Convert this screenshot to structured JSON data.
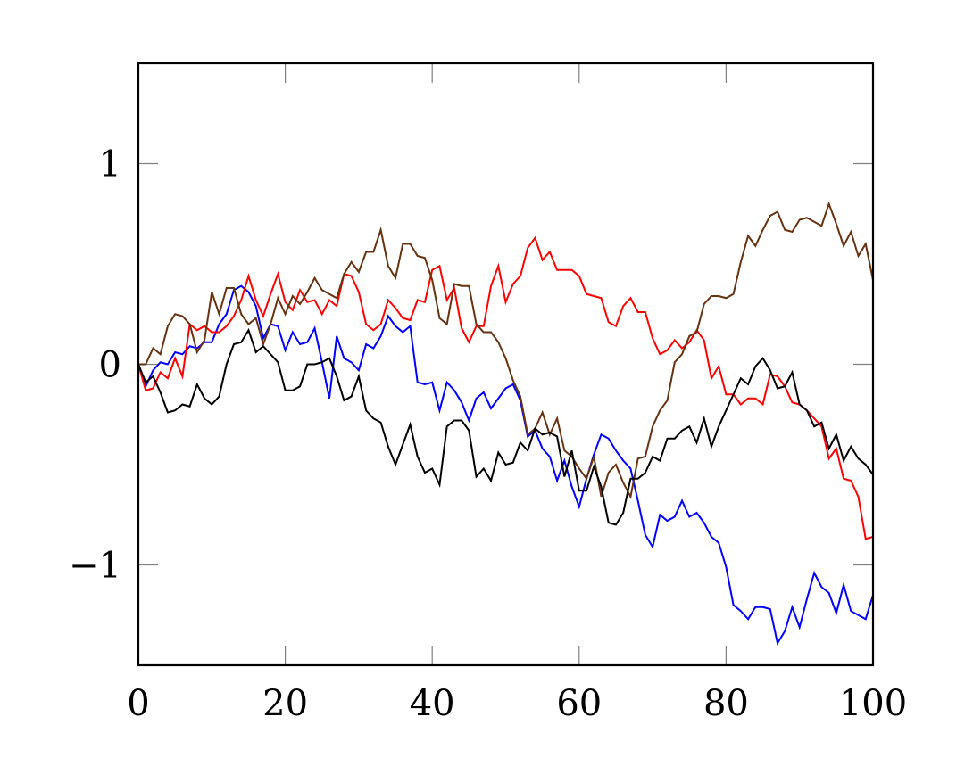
{
  "chart_data": {
    "type": "line",
    "title": "",
    "xlabel": "",
    "ylabel": "",
    "xlim": [
      0,
      100
    ],
    "ylim": [
      -1.5,
      1.5
    ],
    "xticks": [
      0,
      20,
      40,
      60,
      80,
      100
    ],
    "xtick_labels": [
      "0",
      "20",
      "40",
      "60",
      "80",
      "100"
    ],
    "yticks": [
      -1,
      0,
      1
    ],
    "ytick_labels": [
      "−1",
      "0",
      "1"
    ],
    "grid": false,
    "legend": null,
    "x": "0..100 step 1",
    "series": [
      {
        "name": "blue",
        "color": "#0000ff",
        "values": [
          0,
          -0.11,
          -0.03,
          0.01,
          0.0,
          0.06,
          0.05,
          0.09,
          0.08,
          0.11,
          0.11,
          0.2,
          0.25,
          0.37,
          0.39,
          0.36,
          0.29,
          0.13,
          0.2,
          0.19,
          0.07,
          0.16,
          0.1,
          0.11,
          0.18,
          0.01,
          -0.17,
          0.14,
          0.03,
          0.01,
          -0.03,
          0.1,
          0.08,
          0.14,
          0.24,
          0.19,
          0.16,
          0.19,
          -0.09,
          -0.1,
          -0.09,
          -0.23,
          -0.09,
          -0.13,
          -0.19,
          -0.28,
          -0.17,
          -0.14,
          -0.22,
          -0.17,
          -0.12,
          -0.1,
          -0.18,
          -0.36,
          -0.33,
          -0.42,
          -0.46,
          -0.58,
          -0.48,
          -0.61,
          -0.71,
          -0.57,
          -0.45,
          -0.35,
          -0.37,
          -0.43,
          -0.48,
          -0.52,
          -0.68,
          -0.85,
          -0.91,
          -0.75,
          -0.78,
          -0.76,
          -0.68,
          -0.76,
          -0.74,
          -0.79,
          -0.86,
          -0.89,
          -1.01,
          -1.2,
          -1.23,
          -1.27,
          -1.21,
          -1.21,
          -1.22,
          -1.39,
          -1.33,
          -1.21,
          -1.31,
          -1.17,
          -1.04,
          -1.11,
          -1.14,
          -1.24,
          -1.1,
          -1.23,
          -1.25,
          -1.27,
          -1.15
        ]
      },
      {
        "name": "red",
        "color": "#ff0000",
        "values": [
          0,
          -0.13,
          -0.12,
          -0.04,
          -0.07,
          0.03,
          -0.06,
          0.2,
          0.17,
          0.19,
          0.16,
          0.16,
          0.19,
          0.24,
          0.32,
          0.44,
          0.32,
          0.24,
          0.35,
          0.45,
          0.31,
          0.27,
          0.37,
          0.31,
          0.32,
          0.25,
          0.32,
          0.29,
          0.45,
          0.44,
          0.36,
          0.2,
          0.17,
          0.2,
          0.32,
          0.28,
          0.23,
          0.22,
          0.32,
          0.31,
          0.47,
          0.49,
          0.32,
          0.38,
          0.18,
          0.11,
          0.19,
          0.19,
          0.39,
          0.49,
          0.31,
          0.4,
          0.44,
          0.58,
          0.63,
          0.52,
          0.56,
          0.47,
          0.47,
          0.47,
          0.44,
          0.35,
          0.34,
          0.33,
          0.21,
          0.19,
          0.29,
          0.33,
          0.26,
          0.26,
          0.13,
          0.05,
          0.07,
          0.12,
          0.08,
          0.11,
          0.17,
          0.12,
          -0.07,
          -0.01,
          -0.15,
          -0.15,
          -0.2,
          -0.17,
          -0.17,
          -0.2,
          -0.05,
          -0.06,
          -0.11,
          -0.19,
          -0.2,
          -0.23,
          -0.27,
          -0.31,
          -0.47,
          -0.42,
          -0.57,
          -0.58,
          -0.66,
          -0.87,
          -0.86
        ]
      },
      {
        "name": "brown",
        "color": "#663311",
        "values": [
          0,
          0,
          0.08,
          0.05,
          0.19,
          0.25,
          0.24,
          0.2,
          0.06,
          0.12,
          0.36,
          0.25,
          0.38,
          0.38,
          0.25,
          0.2,
          0.23,
          0.1,
          0.2,
          0.33,
          0.25,
          0.34,
          0.3,
          0.36,
          0.43,
          0.37,
          0.35,
          0.33,
          0.45,
          0.51,
          0.46,
          0.56,
          0.56,
          0.67,
          0.49,
          0.43,
          0.6,
          0.6,
          0.54,
          0.53,
          0.42,
          0.23,
          0.2,
          0.4,
          0.39,
          0.39,
          0.2,
          0.16,
          0.16,
          0.11,
          0.03,
          -0.08,
          -0.16,
          -0.35,
          -0.32,
          -0.24,
          -0.35,
          -0.27,
          -0.43,
          -0.46,
          -0.52,
          -0.57,
          -0.46,
          -0.66,
          -0.54,
          -0.5,
          -0.59,
          -0.66,
          -0.47,
          -0.46,
          -0.31,
          -0.23,
          -0.18,
          0.01,
          0.05,
          0.14,
          0.16,
          0.3,
          0.34,
          0.34,
          0.33,
          0.35,
          0.51,
          0.64,
          0.59,
          0.67,
          0.74,
          0.76,
          0.67,
          0.66,
          0.72,
          0.73,
          0.71,
          0.69,
          0.8,
          0.7,
          0.59,
          0.66,
          0.54,
          0.6,
          0.42
        ]
      },
      {
        "name": "black",
        "color": "#000000",
        "values": [
          0,
          -0.09,
          -0.06,
          -0.14,
          -0.24,
          -0.23,
          -0.2,
          -0.21,
          -0.1,
          -0.17,
          -0.2,
          -0.16,
          0.0,
          0.1,
          0.11,
          0.17,
          0.06,
          0.09,
          0.05,
          0.01,
          -0.13,
          -0.13,
          -0.11,
          0.0,
          0.0,
          0.01,
          0.03,
          -0.06,
          -0.18,
          -0.16,
          -0.06,
          -0.23,
          -0.27,
          -0.29,
          -0.41,
          -0.5,
          -0.4,
          -0.3,
          -0.46,
          -0.54,
          -0.52,
          -0.6,
          -0.31,
          -0.28,
          -0.28,
          -0.33,
          -0.56,
          -0.52,
          -0.58,
          -0.44,
          -0.5,
          -0.49,
          -0.39,
          -0.43,
          -0.32,
          -0.35,
          -0.34,
          -0.36,
          -0.56,
          -0.43,
          -0.63,
          -0.63,
          -0.51,
          -0.61,
          -0.79,
          -0.8,
          -0.74,
          -0.57,
          -0.57,
          -0.54,
          -0.46,
          -0.48,
          -0.37,
          -0.37,
          -0.33,
          -0.31,
          -0.39,
          -0.27,
          -0.41,
          -0.31,
          -0.23,
          -0.15,
          -0.07,
          -0.1,
          -0.01,
          0.03,
          -0.03,
          -0.12,
          -0.11,
          -0.04,
          -0.2,
          -0.23,
          -0.31,
          -0.29,
          -0.42,
          -0.35,
          -0.48,
          -0.41,
          -0.47,
          -0.5,
          -0.55
        ]
      }
    ]
  }
}
